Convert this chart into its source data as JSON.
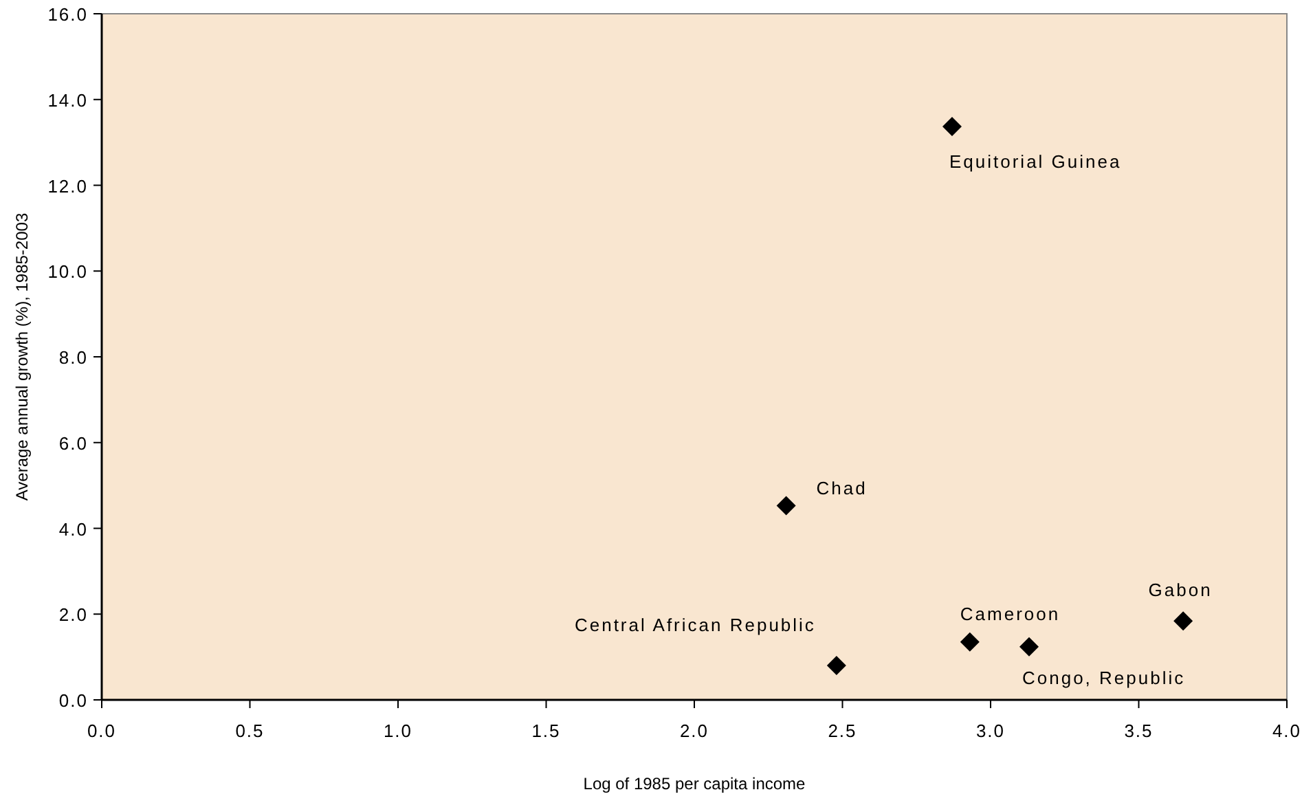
{
  "chart_data": {
    "type": "scatter",
    "xlabel": "Log of 1985 per capita income",
    "ylabel": "Average annual growth (%), 1985-2003",
    "x": [
      2.87,
      2.31,
      2.48,
      2.93,
      3.13,
      3.65
    ],
    "series": [
      {
        "color": "#000000",
        "values": [
          13.37,
          4.53,
          0.8,
          1.35,
          1.24,
          1.84
        ]
      }
    ],
    "marker": "diamond",
    "grid": false,
    "xlim": [
      0,
      4
    ],
    "xticks": [
      {
        "value": 0,
        "label": "0.0"
      },
      {
        "value": 0.5,
        "label": "0.5"
      },
      {
        "value": 1,
        "label": "1.0"
      },
      {
        "value": 1.5,
        "label": "1.5"
      },
      {
        "value": 2,
        "label": "2.0"
      },
      {
        "value": 2.5,
        "label": "2.5"
      },
      {
        "value": 3,
        "label": "3.0"
      },
      {
        "value": 3.5,
        "label": "3.5"
      },
      {
        "value": 4,
        "label": "4.0"
      }
    ],
    "ylim": [
      0,
      16
    ],
    "yticks": [
      {
        "value": 0,
        "label": "0.0"
      },
      {
        "value": 2,
        "label": "2.0"
      },
      {
        "value": 4,
        "label": "4.0"
      },
      {
        "value": 6,
        "label": "6.0"
      },
      {
        "value": 8,
        "label": "8.0"
      },
      {
        "value": 10,
        "label": "10.0"
      },
      {
        "value": 12,
        "label": "12.0"
      },
      {
        "value": 14,
        "label": "14.0"
      },
      {
        "value": 16,
        "label": "16.0"
      }
    ],
    "annotations": [
      {
        "text": "Equitorial Guinea",
        "x": 2.87,
        "y": 13.37
      },
      {
        "text": "Chad",
        "x": 2.31,
        "y": 4.53
      },
      {
        "text": "Central African Republic",
        "x": 2.48,
        "y": 0.8
      },
      {
        "text": "Cameroon",
        "x": 2.93,
        "y": 1.35
      },
      {
        "text": "Congo, Republic",
        "x": 3.13,
        "y": 1.24
      },
      {
        "text": "Gabon",
        "x": 3.65,
        "y": 1.84
      }
    ]
  }
}
